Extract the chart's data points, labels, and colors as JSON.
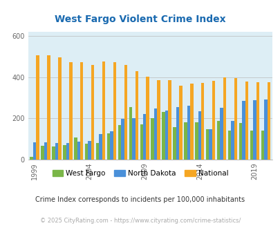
{
  "title": "West Fargo Violent Crime Index",
  "title_color": "#1a6ab0",
  "years": [
    1999,
    2000,
    2001,
    2002,
    2003,
    2004,
    2005,
    2006,
    2007,
    2008,
    2009,
    2010,
    2011,
    2012,
    2013,
    2014,
    2015,
    2016,
    2017,
    2018,
    2019,
    2020
  ],
  "west_fargo": [
    12,
    68,
    65,
    72,
    108,
    78,
    82,
    128,
    168,
    255,
    172,
    202,
    232,
    158,
    182,
    182,
    148,
    188,
    142,
    178,
    142,
    142
  ],
  "north_dakota": [
    85,
    85,
    82,
    82,
    88,
    92,
    125,
    138,
    198,
    202,
    222,
    248,
    238,
    255,
    262,
    235,
    148,
    252,
    188,
    285,
    287,
    292
  ],
  "national": [
    506,
    506,
    498,
    473,
    473,
    461,
    476,
    473,
    458,
    428,
    403,
    386,
    385,
    360,
    368,
    373,
    381,
    398,
    396,
    380,
    377,
    375
  ],
  "bar_colors": [
    "#7ab648",
    "#4a90d9",
    "#f5a623"
  ],
  "bg_color": "#ddeef5",
  "plot_bg": "#ddeef5",
  "ylim": [
    0,
    620
  ],
  "yticks": [
    0,
    200,
    400,
    600
  ],
  "xtick_years": [
    1999,
    2004,
    2009,
    2014,
    2019
  ],
  "legend_labels": [
    "West Fargo",
    "North Dakota",
    "National"
  ],
  "footnote1": "Crime Index corresponds to incidents per 100,000 inhabitants",
  "footnote2": "© 2025 CityRating.com - https://www.cityrating.com/crime-statistics/",
  "footnote1_color": "#333333",
  "footnote2_color": "#aaaaaa",
  "title_fontsize": 10,
  "tick_fontsize": 7,
  "legend_fontsize": 7.5,
  "footnote1_fontsize": 7,
  "footnote2_fontsize": 6
}
